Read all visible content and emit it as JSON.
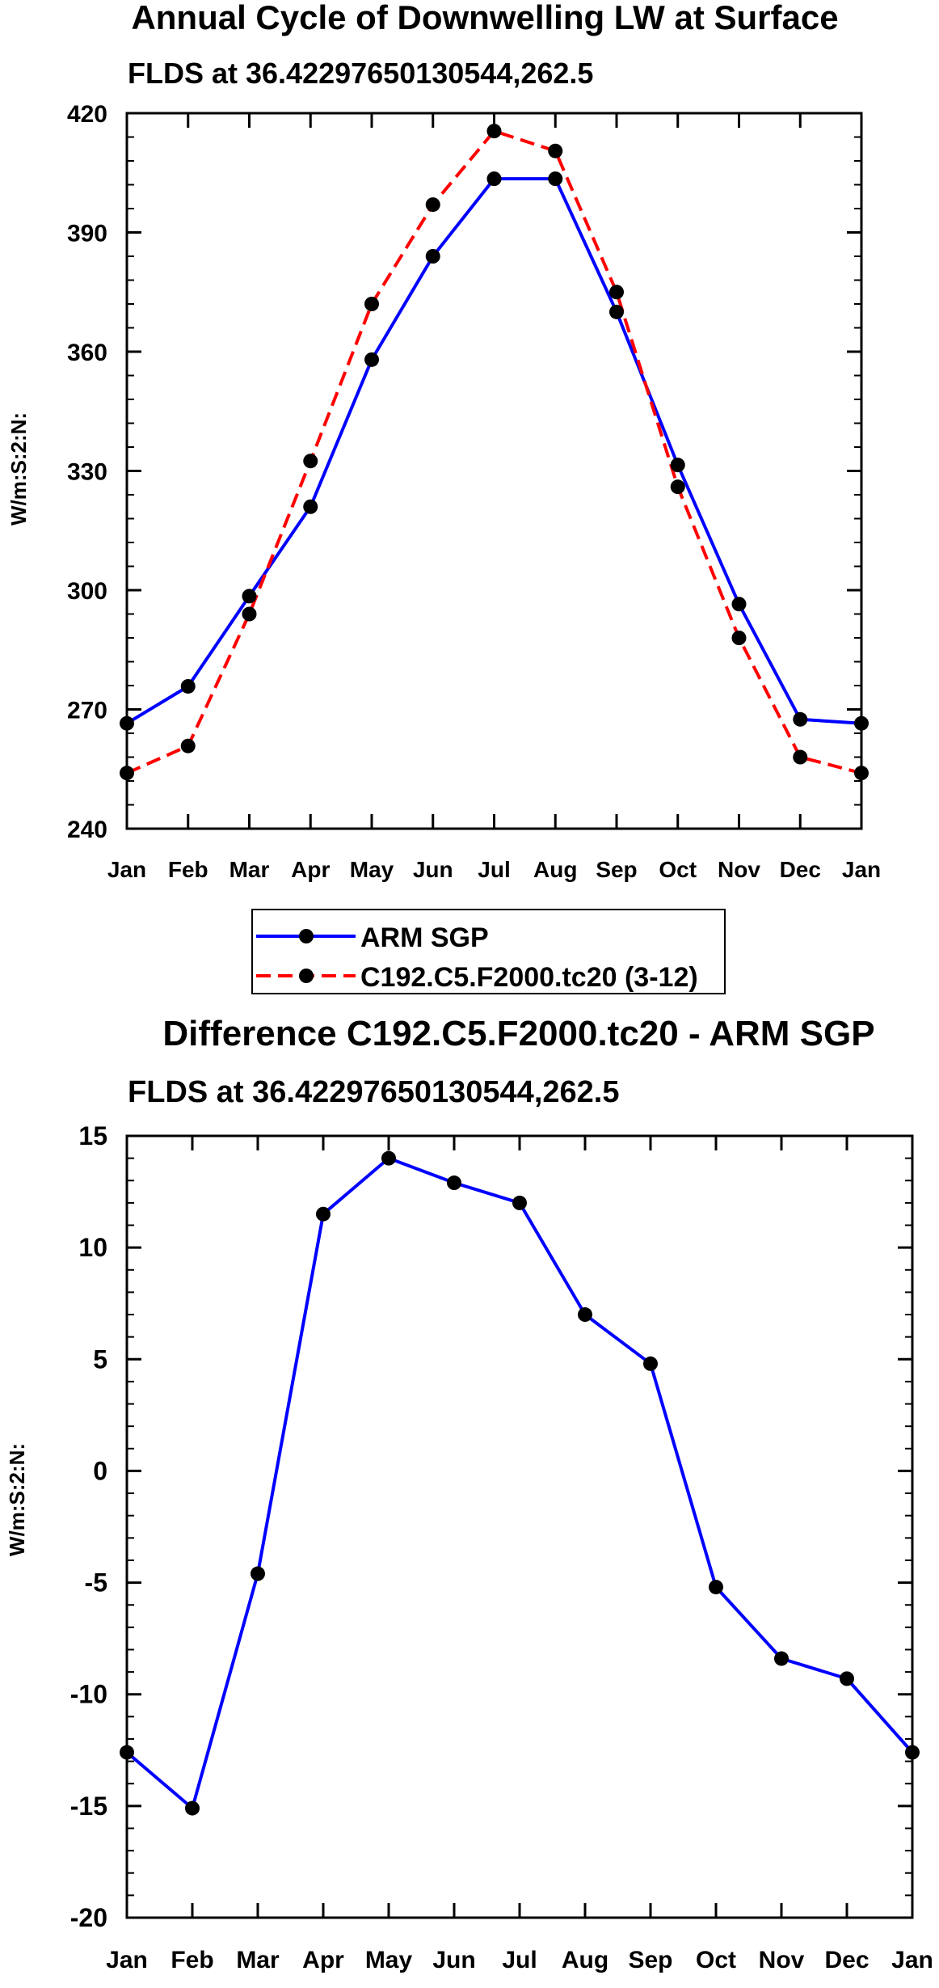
{
  "colors": {
    "obs": "#0000ff",
    "model": "#ff0000",
    "marker": "#000000",
    "axis": "#000000"
  },
  "chart_data": [
    {
      "type": "line",
      "title": "Annual Cycle of Downwelling LW at Surface",
      "subtitle": "FLDS at 36.42297650130544,262.5",
      "ylabel": "W/m:S:2:N:",
      "xlabel": "",
      "categories": [
        "Jan",
        "Feb",
        "Mar",
        "Apr",
        "May",
        "Jun",
        "Jul",
        "Aug",
        "Sep",
        "Oct",
        "Nov",
        "Dec",
        "Jan"
      ],
      "yticks": [
        420,
        390,
        360,
        330,
        300,
        270,
        240
      ],
      "ylim": [
        240,
        420
      ],
      "series": [
        {
          "name": "ARM SGP",
          "style": "solid",
          "values": [
            266.5,
            275.8,
            298.5,
            321.0,
            358.0,
            384.0,
            403.5,
            403.5,
            370.0,
            331.5,
            296.5,
            267.5,
            266.5
          ]
        },
        {
          "name": "C192.C5.F2000.tc20 (3-12)",
          "style": "dashed",
          "values": [
            254.0,
            260.8,
            294.0,
            332.5,
            372.0,
            397.0,
            415.5,
            410.5,
            375.0,
            326.0,
            288.0,
            258.0,
            254.0
          ]
        }
      ]
    },
    {
      "type": "line",
      "title": "Difference C192.C5.F2000.tc20 - ARM SGP",
      "subtitle": "FLDS at 36.42297650130544,262.5",
      "ylabel": "W/m:S:2:N:",
      "xlabel": "",
      "categories": [
        "Jan",
        "Feb",
        "Mar",
        "Apr",
        "May",
        "Jun",
        "Jul",
        "Aug",
        "Sep",
        "Oct",
        "Nov",
        "Dec",
        "Jan"
      ],
      "yticks": [
        15,
        10,
        5,
        0,
        -5,
        -10,
        -15,
        -20
      ],
      "ylim": [
        -20,
        15
      ],
      "series": [
        {
          "name": "Difference",
          "style": "solid",
          "values": [
            -12.6,
            -15.1,
            -4.6,
            11.5,
            14.0,
            12.9,
            12.0,
            7.0,
            4.8,
            -5.2,
            -8.4,
            -9.3,
            -12.6
          ]
        }
      ]
    }
  ]
}
